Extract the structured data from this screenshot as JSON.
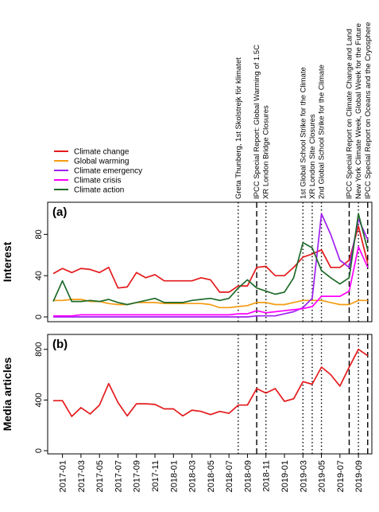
{
  "chart_data": [
    {
      "id": "a",
      "type": "line",
      "panel_label": "(a)",
      "ylabel": "Interest",
      "ylim": [
        0,
        105
      ],
      "yticks": [
        0,
        40,
        80
      ],
      "x": [
        "2016-12",
        "2017-01",
        "2017-02",
        "2017-03",
        "2017-04",
        "2017-05",
        "2017-06",
        "2017-07",
        "2017-08",
        "2017-09",
        "2017-10",
        "2017-11",
        "2017-12",
        "2018-01",
        "2018-02",
        "2018-03",
        "2018-04",
        "2018-05",
        "2018-06",
        "2018-07",
        "2018-08",
        "2018-09",
        "2018-10",
        "2018-11",
        "2018-12",
        "2019-01",
        "2019-02",
        "2019-03",
        "2019-04",
        "2019-05",
        "2019-06",
        "2019-07",
        "2019-08",
        "2019-09",
        "2019-10"
      ],
      "series": [
        {
          "name": "Climate change",
          "color": "#e41a1c",
          "values": [
            42,
            47,
            43,
            47,
            46,
            43,
            48,
            28,
            29,
            43,
            38,
            41,
            35,
            35,
            35,
            35,
            38,
            36,
            24,
            24,
            30,
            30,
            48,
            49,
            40,
            40,
            48,
            58,
            61,
            65,
            48,
            48,
            55,
            88,
            52
          ]
        },
        {
          "name": "Global warming",
          "color": "#f39c12",
          "values": [
            16,
            16,
            17,
            17,
            15,
            15,
            13,
            12,
            12,
            14,
            14,
            14,
            13,
            13,
            13,
            13,
            13,
            12,
            9,
            9,
            10,
            11,
            14,
            14,
            12,
            12,
            14,
            16,
            16,
            16,
            14,
            12,
            12,
            16,
            16
          ]
        },
        {
          "name": "Climate emergency",
          "color": "#a020f0",
          "values": [
            0,
            0,
            0,
            0,
            0,
            0,
            0,
            0,
            0,
            0,
            0,
            0,
            0,
            0,
            0,
            0,
            0,
            0,
            0,
            0,
            0,
            0,
            1,
            1,
            1,
            3,
            5,
            9,
            18,
            100,
            80,
            55,
            48,
            95,
            75
          ]
        },
        {
          "name": "Climate crisis",
          "color": "#ff00ff",
          "values": [
            1,
            1,
            1,
            2,
            2,
            2,
            2,
            2,
            2,
            2,
            2,
            2,
            2,
            2,
            2,
            2,
            2,
            2,
            2,
            2,
            3,
            3,
            6,
            4,
            5,
            6,
            7,
            8,
            10,
            20,
            20,
            20,
            25,
            68,
            48
          ]
        },
        {
          "name": "Climate action",
          "color": "#1f6b2a",
          "values": [
            15,
            35,
            15,
            15,
            16,
            15,
            17,
            14,
            12,
            14,
            16,
            18,
            14,
            14,
            14,
            16,
            17,
            18,
            16,
            18,
            28,
            36,
            28,
            25,
            22,
            24,
            38,
            72,
            67,
            45,
            38,
            32,
            38,
            100,
            65
          ]
        }
      ]
    },
    {
      "id": "b",
      "type": "line",
      "panel_label": "(b)",
      "ylabel": "Media articles",
      "ylim": [
        0,
        880
      ],
      "yticks": [
        0,
        400,
        800
      ],
      "x": [
        "2016-12",
        "2017-01",
        "2017-02",
        "2017-03",
        "2017-04",
        "2017-05",
        "2017-06",
        "2017-07",
        "2017-08",
        "2017-09",
        "2017-10",
        "2017-11",
        "2017-12",
        "2018-01",
        "2018-02",
        "2018-03",
        "2018-04",
        "2018-05",
        "2018-06",
        "2018-07",
        "2018-08",
        "2018-09",
        "2018-10",
        "2018-11",
        "2018-12",
        "2019-01",
        "2019-02",
        "2019-03",
        "2019-04",
        "2019-05",
        "2019-06",
        "2019-07",
        "2019-08",
        "2019-09",
        "2019-10"
      ],
      "series": [
        {
          "name": "Media articles",
          "color": "#e41a1c",
          "values": [
            395,
            395,
            270,
            340,
            290,
            360,
            530,
            380,
            275,
            370,
            370,
            365,
            330,
            330,
            275,
            320,
            310,
            285,
            310,
            295,
            360,
            360,
            490,
            455,
            490,
            390,
            410,
            545,
            525,
            660,
            600,
            510,
            660,
            800,
            750
          ]
        }
      ]
    }
  ],
  "x_tick_labels": [
    "2017-01",
    "2017-03",
    "2017-05",
    "2017-07",
    "2017-09",
    "2017-11",
    "2018-01",
    "2018-03",
    "2018-05",
    "2018-07",
    "2018-09",
    "2018-11",
    "2019-01",
    "2019-03",
    "2019-05",
    "2019-07",
    "2019-09"
  ],
  "legend": {
    "placement": "top-left"
  },
  "events": [
    {
      "x": "2018-08",
      "style": "dotted",
      "label_lines": [
        "Greta Thunberg, 1st Skolstrejk för klimatet"
      ]
    },
    {
      "x": "2018-10",
      "style": "dashed",
      "label_lines": [
        "IPCC Special Report: Global Warming of 1.5C"
      ]
    },
    {
      "x": "2018-11",
      "style": "dotted",
      "label_lines": [
        "XR London Bridge Closures"
      ]
    },
    {
      "x": "2019-03",
      "style": "dotted",
      "label_lines": [
        "1st Global School Strike for the Climate"
      ]
    },
    {
      "x": "2019-04",
      "style": "dotted",
      "label_lines": [
        "XR London Site Closures"
      ]
    },
    {
      "x": "2019-05",
      "style": "dotted",
      "label_lines": [
        "2nd Global School Strike for the Climate"
      ]
    },
    {
      "x": "2019-08",
      "style": "dashed",
      "label_lines": [
        "IPCC Special Report on Climate Change and Land"
      ]
    },
    {
      "x": "2019-09",
      "style": "dotted",
      "label_lines": [
        "New York Climate Week, Global Week for the Future"
      ]
    },
    {
      "x": "2019-10",
      "style": "dashed",
      "label_lines": [
        "IPCC Special Report on Oceans and the Cryosphere"
      ]
    }
  ]
}
